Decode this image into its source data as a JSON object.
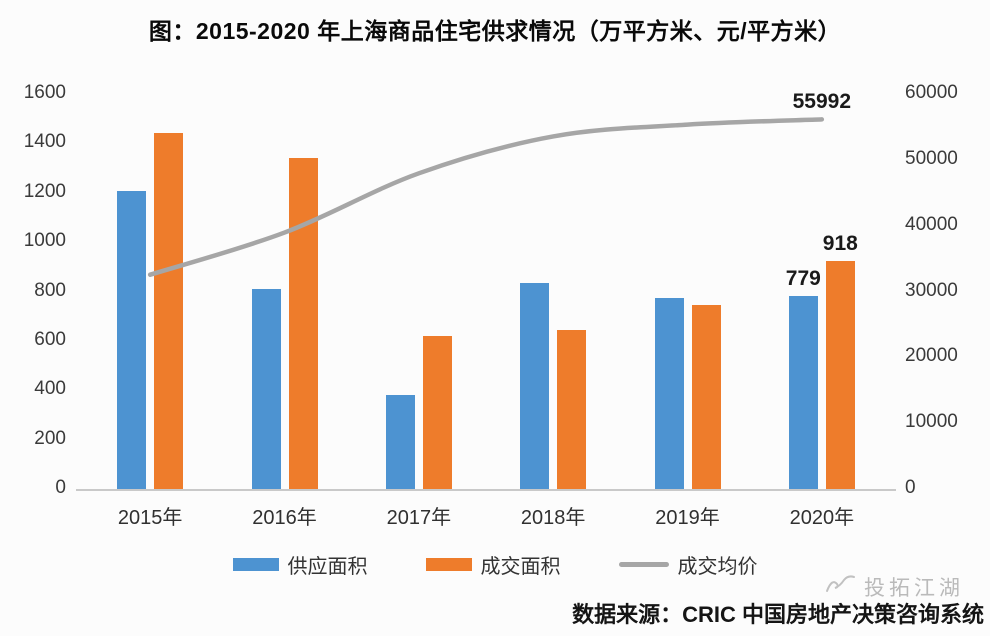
{
  "title": "图：2015-2020 年上海商品住宅供求情况（万平方米、元/平方米）",
  "source": {
    "text": "数据来源：CRIC 中国房地产决策咨询系统"
  },
  "watermark": {
    "text": "投拓江湖",
    "icon": "bird-scribble-icon"
  },
  "colors": {
    "supply_bar": "#4D93D1",
    "transaction_bar": "#EE7C2B",
    "price_line": "#A6A6A6",
    "axis_text": "#3A3A3A",
    "baseline": "#C9C9C9",
    "background": "#FCFCFC"
  },
  "chart_data": {
    "type": "bar",
    "subtype": "grouped-bars-with-line-dual-axis",
    "title": "图：2015-2020 年上海商品住宅供求情况（万平方米、元/平方米）",
    "categories": [
      "2015年",
      "2016年",
      "2017年",
      "2018年",
      "2019年",
      "2020年"
    ],
    "series": [
      {
        "name": "供应面积",
        "kind": "bar",
        "axis": "left",
        "color": "#4D93D1",
        "values": [
          1205,
          805,
          378,
          830,
          770,
          779
        ],
        "data_labels": [
          null,
          null,
          null,
          null,
          null,
          "779"
        ]
      },
      {
        "name": "成交面积",
        "kind": "bar",
        "axis": "left",
        "color": "#EE7C2B",
        "values": [
          1440,
          1335,
          615,
          640,
          740,
          918
        ],
        "data_labels": [
          null,
          null,
          null,
          null,
          null,
          "918"
        ]
      },
      {
        "name": "成交均价",
        "kind": "line",
        "axis": "right",
        "color": "#A6A6A6",
        "values": [
          32400,
          38800,
          47800,
          53400,
          55200,
          55992
        ],
        "data_labels": [
          null,
          null,
          null,
          null,
          null,
          "55992"
        ]
      }
    ],
    "left_axis": {
      "min": 0,
      "max": 1600,
      "step": 200,
      "ticks": [
        "0",
        "200",
        "400",
        "600",
        "800",
        "1000",
        "1200",
        "1400",
        "1600"
      ]
    },
    "right_axis": {
      "min": 0,
      "max": 60000,
      "step": 10000,
      "ticks": [
        "0",
        "10000",
        "20000",
        "30000",
        "40000",
        "50000",
        "60000"
      ]
    },
    "grid": false,
    "legend_position": "bottom"
  }
}
